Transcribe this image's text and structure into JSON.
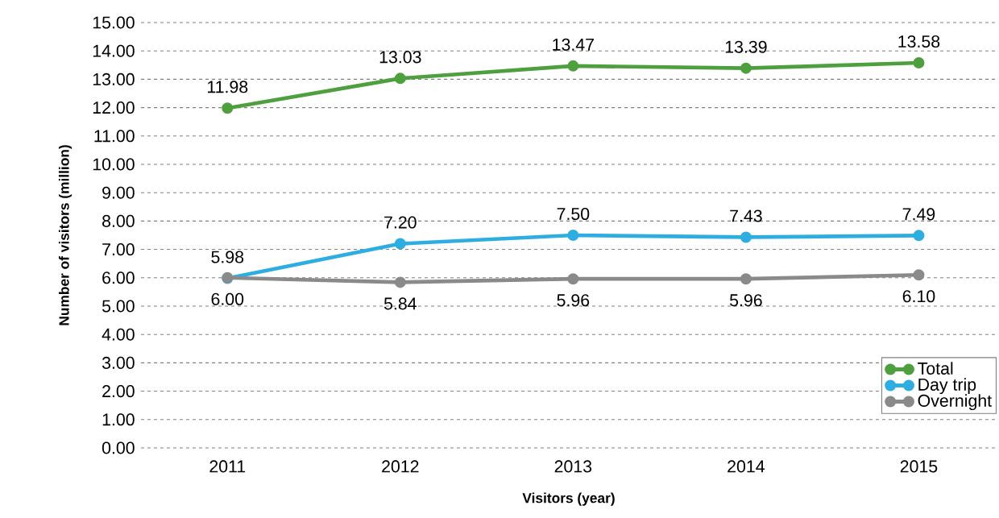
{
  "chart_data": {
    "type": "line",
    "xlabel": "Visitors (year)",
    "ylabel": "Number of visitors  (million)",
    "categories": [
      "2011",
      "2012",
      "2013",
      "2014",
      "2015"
    ],
    "series": [
      {
        "name": "Total",
        "color": "#4e9f3d",
        "values": [
          11.98,
          13.03,
          13.47,
          13.39,
          13.58
        ],
        "value_labels": [
          "11.98",
          "13.03",
          "13.47",
          "13.39",
          "13.58"
        ]
      },
      {
        "name": "Day trip",
        "color": "#2eaee0",
        "values": [
          5.98,
          7.2,
          7.5,
          7.43,
          7.49
        ],
        "value_labels": [
          "5.98",
          "7.20",
          "7.50",
          "7.43",
          "7.49"
        ]
      },
      {
        "name": "Overnight",
        "color": "#8a8a8a",
        "values": [
          6.0,
          5.84,
          5.96,
          5.96,
          6.1
        ],
        "value_labels": [
          "6.00",
          "5.84",
          "5.96",
          "5.96",
          "6.10"
        ]
      }
    ],
    "ylim": [
      0,
      15
    ],
    "yticks": [
      {
        "value": 0,
        "label": "0.00"
      },
      {
        "value": 1,
        "label": "1.00"
      },
      {
        "value": 2,
        "label": "2.00"
      },
      {
        "value": 3,
        "label": "3.00"
      },
      {
        "value": 4,
        "label": "4.00"
      },
      {
        "value": 5,
        "label": "5.00"
      },
      {
        "value": 6,
        "label": "6.00"
      },
      {
        "value": 7,
        "label": "7.00"
      },
      {
        "value": 8,
        "label": "8.00"
      },
      {
        "value": 9,
        "label": "9.00"
      },
      {
        "value": 10,
        "label": "10.00"
      },
      {
        "value": 11,
        "label": "11.00"
      },
      {
        "value": 12,
        "label": "12.00"
      },
      {
        "value": 13,
        "label": "13.00"
      },
      {
        "value": 14,
        "label": "14.00"
      },
      {
        "value": 15,
        "label": "15.00"
      }
    ],
    "grid": "y",
    "legend": "bottom right",
    "marker": "circle",
    "line_style": "solid"
  }
}
